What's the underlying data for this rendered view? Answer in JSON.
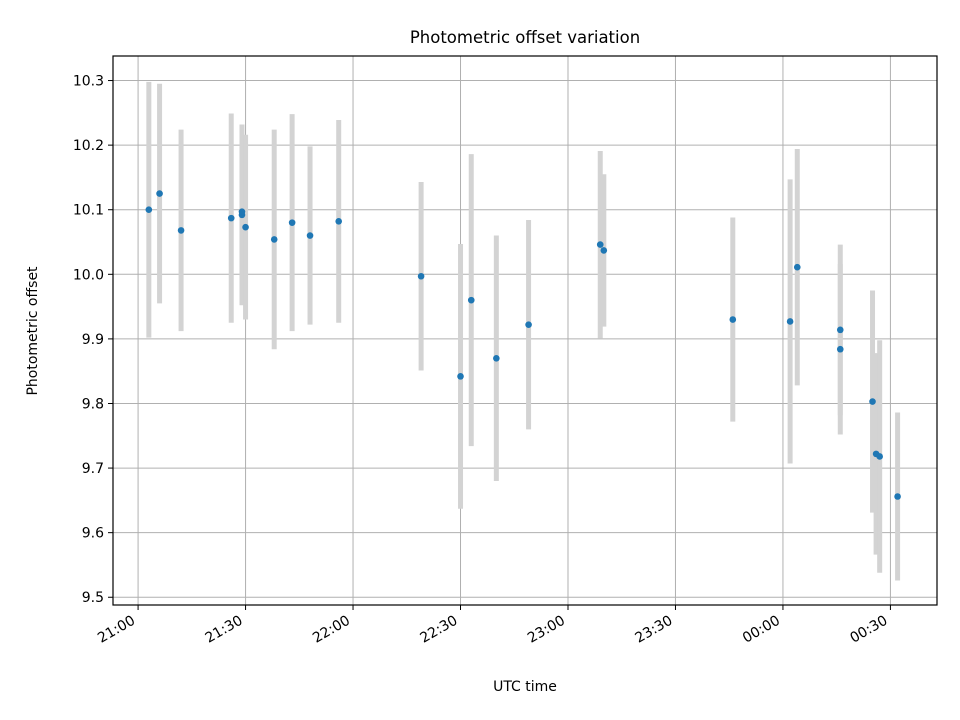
{
  "chart_data": {
    "type": "scatter",
    "title": "Photometric offset variation",
    "xlabel": "UTC time",
    "ylabel": "Photometric offset",
    "grid": true,
    "x_axis": {
      "kind": "time",
      "min": "20:53",
      "max": "00:43",
      "ticks": [
        "21:00",
        "21:30",
        "22:00",
        "22:30",
        "23:00",
        "23:30",
        "00:00",
        "00:30"
      ]
    },
    "y_axis": {
      "min": 9.488,
      "max": 10.338,
      "ticks": [
        "9.5",
        "9.6",
        "9.7",
        "9.8",
        "9.9",
        "10.0",
        "10.1",
        "10.2",
        "10.3"
      ]
    },
    "colors": {
      "point": "#1f77b4",
      "errorbar": "#d3d3d3",
      "grid": "#b0b0b0"
    },
    "points": [
      {
        "x": "21:03",
        "y": 10.1,
        "yerr": 0.198
      },
      {
        "x": "21:06",
        "y": 10.125,
        "yerr": 0.17
      },
      {
        "x": "21:12",
        "y": 10.068,
        "yerr": 0.156
      },
      {
        "x": "21:26",
        "y": 10.087,
        "yerr": 0.162
      },
      {
        "x": "21:29",
        "y": 10.092,
        "yerr": 0.14
      },
      {
        "x": "21:29",
        "y": 10.097,
        "yerr": 0.1
      },
      {
        "x": "21:30",
        "y": 10.073,
        "yerr": 0.143
      },
      {
        "x": "21:38",
        "y": 10.054,
        "yerr": 0.17
      },
      {
        "x": "21:43",
        "y": 10.08,
        "yerr": 0.168
      },
      {
        "x": "21:48",
        "y": 10.06,
        "yerr": 0.138
      },
      {
        "x": "21:56",
        "y": 10.082,
        "yerr": 0.157
      },
      {
        "x": "22:19",
        "y": 9.997,
        "yerr": 0.146
      },
      {
        "x": "22:30",
        "y": 9.842,
        "yerr": 0.205
      },
      {
        "x": "22:33",
        "y": 9.96,
        "yerr": 0.226
      },
      {
        "x": "22:40",
        "y": 9.87,
        "yerr": 0.19
      },
      {
        "x": "22:49",
        "y": 9.922,
        "yerr": 0.162
      },
      {
        "x": "23:09",
        "y": 10.046,
        "yerr": 0.145
      },
      {
        "x": "23:10",
        "y": 10.037,
        "yerr": 0.118
      },
      {
        "x": "23:46",
        "y": 9.93,
        "yerr": 0.158
      },
      {
        "x": "00:02",
        "y": 9.927,
        "yerr": 0.22
      },
      {
        "x": "00:04",
        "y": 10.011,
        "yerr": 0.183
      },
      {
        "x": "00:16",
        "y": 9.884,
        "yerr": 0.132
      },
      {
        "x": "00:16",
        "y": 9.914,
        "yerr": 0.132
      },
      {
        "x": "00:25",
        "y": 9.803,
        "yerr": 0.172
      },
      {
        "x": "00:26",
        "y": 9.722,
        "yerr": 0.156
      },
      {
        "x": "00:27",
        "y": 9.718,
        "yerr": 0.18
      },
      {
        "x": "00:32",
        "y": 9.656,
        "yerr": 0.13
      }
    ]
  }
}
